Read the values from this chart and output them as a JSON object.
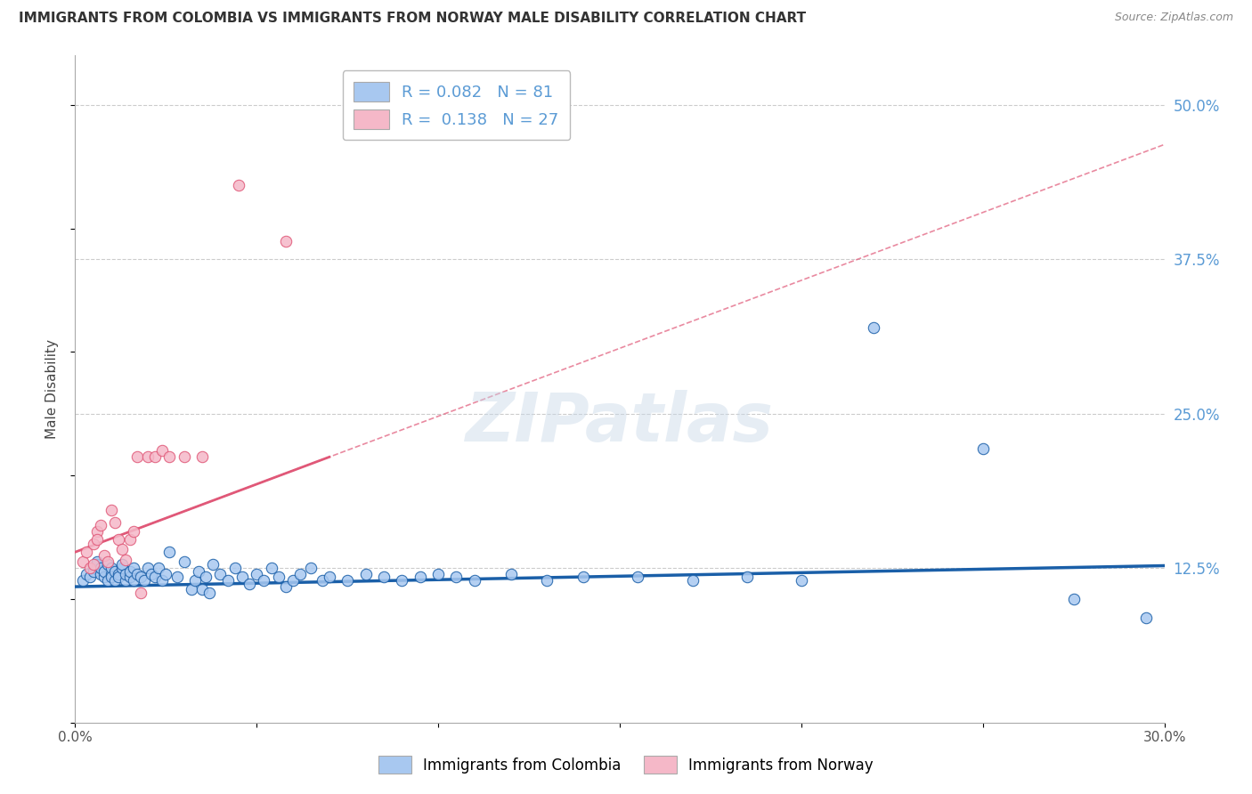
{
  "title": "IMMIGRANTS FROM COLOMBIA VS IMMIGRANTS FROM NORWAY MALE DISABILITY CORRELATION CHART",
  "source": "Source: ZipAtlas.com",
  "ylabel": "Male Disability",
  "x_min": 0.0,
  "x_max": 0.3,
  "y_min": 0.0,
  "y_max": 0.54,
  "right_yticks": [
    0.5,
    0.375,
    0.25,
    0.125
  ],
  "right_yticklabels": [
    "50.0%",
    "37.5%",
    "25.0%",
    "12.5%"
  ],
  "x_ticks": [
    0.0,
    0.05,
    0.1,
    0.15,
    0.2,
    0.25,
    0.3
  ],
  "color_colombia": "#a8c8f0",
  "color_norway": "#f5b8c8",
  "color_colombia_line": "#1a5fa8",
  "color_norway_line": "#e05878",
  "watermark": "ZIPatlas",
  "colombia_x": [
    0.002,
    0.003,
    0.004,
    0.005,
    0.005,
    0.006,
    0.006,
    0.007,
    0.007,
    0.008,
    0.008,
    0.009,
    0.009,
    0.01,
    0.01,
    0.01,
    0.011,
    0.011,
    0.012,
    0.012,
    0.013,
    0.013,
    0.014,
    0.014,
    0.015,
    0.015,
    0.016,
    0.016,
    0.017,
    0.018,
    0.019,
    0.02,
    0.021,
    0.022,
    0.023,
    0.024,
    0.025,
    0.026,
    0.028,
    0.03,
    0.032,
    0.033,
    0.034,
    0.035,
    0.036,
    0.037,
    0.038,
    0.04,
    0.042,
    0.044,
    0.046,
    0.048,
    0.05,
    0.052,
    0.054,
    0.056,
    0.058,
    0.06,
    0.062,
    0.065,
    0.068,
    0.07,
    0.075,
    0.08,
    0.085,
    0.09,
    0.095,
    0.1,
    0.105,
    0.11,
    0.12,
    0.13,
    0.14,
    0.155,
    0.17,
    0.185,
    0.2,
    0.22,
    0.25,
    0.275,
    0.295
  ],
  "colombia_y": [
    0.115,
    0.12,
    0.118,
    0.125,
    0.122,
    0.128,
    0.13,
    0.12,
    0.125,
    0.118,
    0.122,
    0.115,
    0.128,
    0.12,
    0.125,
    0.118,
    0.115,
    0.122,
    0.12,
    0.118,
    0.125,
    0.128,
    0.115,
    0.12,
    0.118,
    0.122,
    0.115,
    0.125,
    0.12,
    0.118,
    0.115,
    0.125,
    0.12,
    0.118,
    0.125,
    0.115,
    0.12,
    0.138,
    0.118,
    0.13,
    0.108,
    0.115,
    0.122,
    0.108,
    0.118,
    0.105,
    0.128,
    0.12,
    0.115,
    0.125,
    0.118,
    0.112,
    0.12,
    0.115,
    0.125,
    0.118,
    0.11,
    0.115,
    0.12,
    0.125,
    0.115,
    0.118,
    0.115,
    0.12,
    0.118,
    0.115,
    0.118,
    0.12,
    0.118,
    0.115,
    0.12,
    0.115,
    0.118,
    0.118,
    0.115,
    0.118,
    0.115,
    0.32,
    0.222,
    0.1,
    0.085
  ],
  "norway_x": [
    0.002,
    0.003,
    0.004,
    0.005,
    0.005,
    0.006,
    0.006,
    0.007,
    0.008,
    0.009,
    0.01,
    0.011,
    0.012,
    0.013,
    0.014,
    0.015,
    0.016,
    0.017,
    0.018,
    0.02,
    0.022,
    0.024,
    0.026,
    0.03,
    0.035,
    0.045,
    0.058
  ],
  "norway_y": [
    0.13,
    0.138,
    0.125,
    0.145,
    0.128,
    0.155,
    0.148,
    0.16,
    0.135,
    0.13,
    0.172,
    0.162,
    0.148,
    0.14,
    0.132,
    0.148,
    0.155,
    0.215,
    0.105,
    0.215,
    0.215,
    0.22,
    0.215,
    0.215,
    0.215,
    0.435,
    0.39
  ],
  "norway_trend_x": [
    0.0,
    0.07
  ],
  "norway_trend_y": [
    0.138,
    0.215
  ],
  "colombia_trend_x": [
    0.0,
    0.3
  ],
  "colombia_trend_y": [
    0.11,
    0.127
  ]
}
